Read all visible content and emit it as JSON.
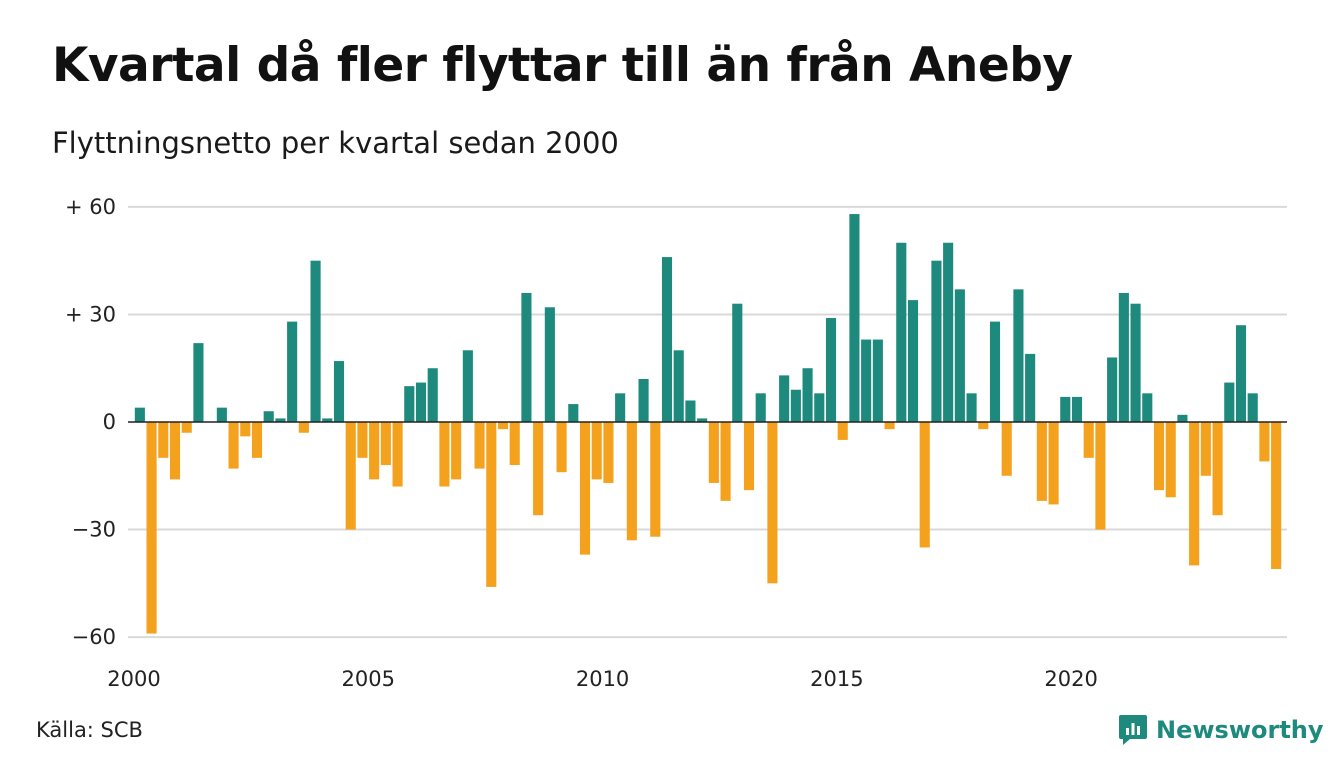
{
  "header": {
    "title": "Kvartal då fler flyttar till än från Aneby",
    "subtitle": "Flyttningsnetto per kvartal sedan 2000"
  },
  "footer": {
    "source": "Källa: SCB",
    "brand": "Newsworthy",
    "brand_icon": "newsworthy-logo-icon"
  },
  "colors": {
    "positive": "#1d8a7d",
    "negative": "#f4a11d",
    "grid": "#d9d9d9",
    "baseline": "#222222"
  },
  "chart_data": {
    "type": "bar",
    "title": "Kvartal då fler flyttar till än från Aneby",
    "subtitle": "Flyttningsnetto per kvartal sedan 2000",
    "ylim": [
      -60,
      60
    ],
    "yticks": [
      {
        "value": 60,
        "label": "+ 60"
      },
      {
        "value": 30,
        "label": "+ 30"
      },
      {
        "value": 0,
        "label": "0"
      },
      {
        "value": -30,
        "label": "−30"
      },
      {
        "value": -60,
        "label": "−60"
      }
    ],
    "xticks": [
      {
        "year": 2000,
        "label": "2000"
      },
      {
        "year": 2005,
        "label": "2005"
      },
      {
        "year": 2010,
        "label": "2010"
      },
      {
        "year": 2015,
        "label": "2015"
      },
      {
        "year": 2020,
        "label": "2020"
      }
    ],
    "start_year": 2000,
    "grid": true,
    "values": [
      4,
      -59,
      -10,
      -16,
      -3,
      22,
      0,
      4,
      -13,
      -4,
      -10,
      3,
      1,
      28,
      -3,
      45,
      1,
      17,
      -30,
      -10,
      -16,
      -12,
      -18,
      10,
      11,
      15,
      -18,
      -16,
      20,
      -13,
      -46,
      -2,
      -12,
      36,
      -26,
      32,
      -14,
      5,
      -37,
      -16,
      -17,
      8,
      -33,
      12,
      -32,
      46,
      20,
      6,
      1,
      -17,
      -22,
      33,
      -19,
      8,
      -45,
      13,
      9,
      15,
      8,
      29,
      -5,
      58,
      23,
      23,
      -2,
      50,
      34,
      -35,
      45,
      50,
      37,
      8,
      -2,
      28,
      -15,
      37,
      19,
      -22,
      -23,
      7,
      7,
      -10,
      -30,
      18,
      36,
      33,
      8,
      -19,
      -21,
      2,
      -40,
      -15,
      -26,
      11,
      27,
      8,
      -11,
      -41
    ]
  }
}
